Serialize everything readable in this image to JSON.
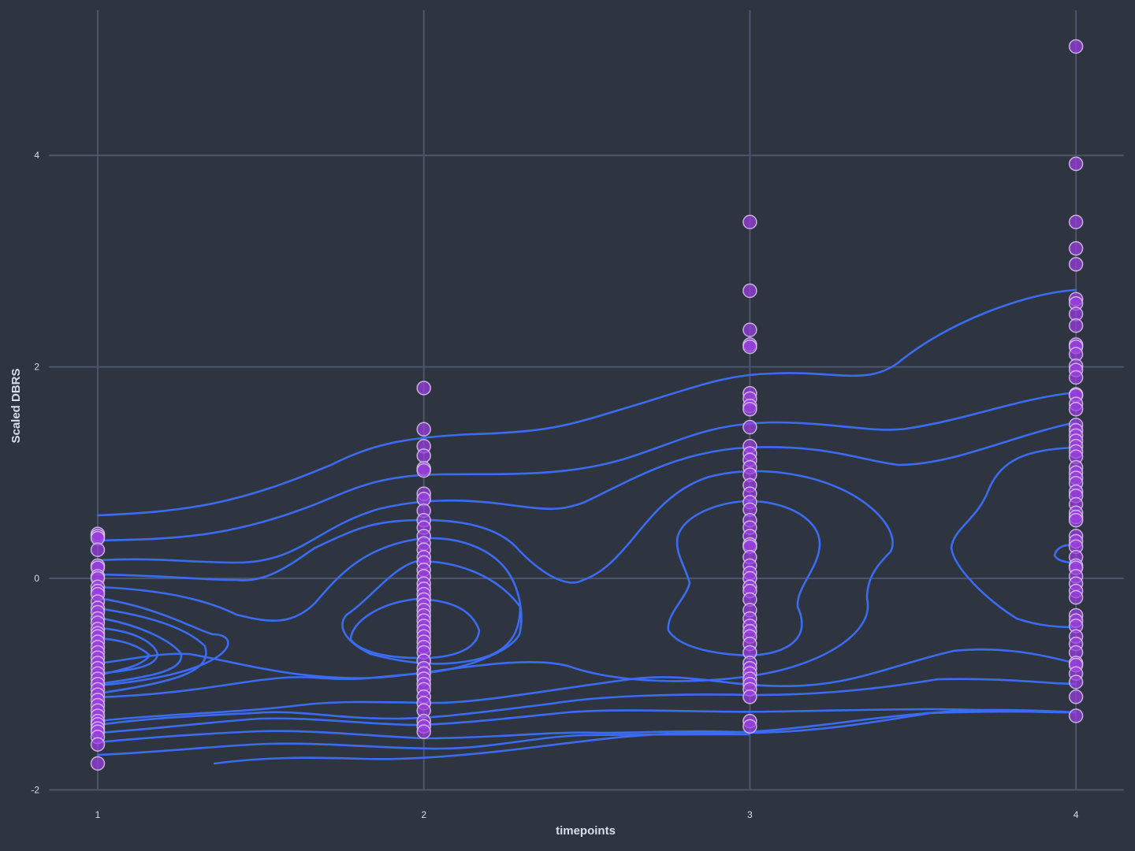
{
  "chart_data": {
    "type": "scatter",
    "xlabel": "timepoints",
    "ylabel": "Scaled DBRS",
    "xlim": [
      0.85,
      4.15
    ],
    "ylim": [
      -2.05,
      5.4
    ],
    "x_ticks": [
      1,
      2,
      3,
      4
    ],
    "y_ticks": [
      -2,
      0,
      2,
      4
    ],
    "grid": true,
    "legend": "none",
    "colors": {
      "background": "#2e3440",
      "grid": "#4c566a",
      "points": "#9b3fe0",
      "contours": "#3b6cf0"
    },
    "series": [
      {
        "x": 1,
        "values": [
          0.42,
          0.4,
          0.38,
          0.27,
          0.12,
          0.1,
          0.02,
          0.0,
          -0.08,
          -0.12,
          -0.15,
          -0.22,
          -0.28,
          -0.32,
          -0.38,
          -0.42,
          -0.48,
          -0.52,
          -0.55,
          -0.6,
          -0.65,
          -0.7,
          -0.75,
          -0.8,
          -0.85,
          -0.9,
          -0.95,
          -1.0,
          -1.05,
          -1.1,
          -1.15,
          -1.2,
          -1.25,
          -1.3,
          -1.35,
          -1.38,
          -1.42,
          -1.45,
          -1.5,
          -1.57,
          -1.75
        ]
      },
      {
        "x": 2,
        "values": [
          1.8,
          1.41,
          1.25,
          1.16,
          1.04,
          1.02,
          0.8,
          0.75,
          0.64,
          0.55,
          0.48,
          0.4,
          0.33,
          0.27,
          0.2,
          0.15,
          0.08,
          0.02,
          -0.05,
          -0.1,
          -0.15,
          -0.2,
          -0.25,
          -0.3,
          -0.35,
          -0.4,
          -0.45,
          -0.5,
          -0.55,
          -0.6,
          -0.65,
          -0.7,
          -0.78,
          -0.85,
          -0.9,
          -0.95,
          -1.0,
          -1.05,
          -1.12,
          -1.18,
          -1.25,
          -1.35,
          -1.4,
          -1.45
        ]
      },
      {
        "x": 3,
        "values": [
          3.37,
          2.72,
          2.35,
          2.21,
          2.19,
          1.75,
          1.7,
          1.63,
          1.6,
          1.43,
          1.25,
          1.18,
          1.12,
          1.05,
          0.98,
          0.88,
          0.8,
          0.72,
          0.65,
          0.55,
          0.48,
          0.4,
          0.32,
          0.3,
          0.2,
          0.12,
          0.05,
          0.0,
          -0.08,
          -0.12,
          -0.2,
          -0.3,
          -0.38,
          -0.45,
          -0.5,
          -0.55,
          -0.62,
          -0.7,
          -0.8,
          -0.85,
          -0.9,
          -0.95,
          -1.0,
          -1.05,
          -1.12,
          -1.35,
          -1.4
        ]
      },
      {
        "x": 4,
        "values": [
          5.03,
          3.92,
          3.37,
          3.12,
          2.97,
          2.64,
          2.6,
          2.5,
          2.39,
          2.21,
          2.19,
          2.12,
          2.01,
          1.97,
          1.9,
          1.74,
          1.73,
          1.65,
          1.6,
          1.45,
          1.4,
          1.35,
          1.3,
          1.25,
          1.2,
          1.15,
          1.05,
          1.0,
          0.95,
          0.9,
          0.82,
          0.78,
          0.7,
          0.62,
          0.58,
          0.55,
          0.4,
          0.35,
          0.3,
          0.2,
          0.12,
          0.1,
          0.02,
          -0.05,
          -0.12,
          -0.18,
          -0.35,
          -0.4,
          -0.45,
          -0.55,
          -0.62,
          -0.7,
          -0.8,
          -0.82,
          -0.9,
          -0.98,
          -1.12,
          -1.3
        ]
      }
    ]
  }
}
